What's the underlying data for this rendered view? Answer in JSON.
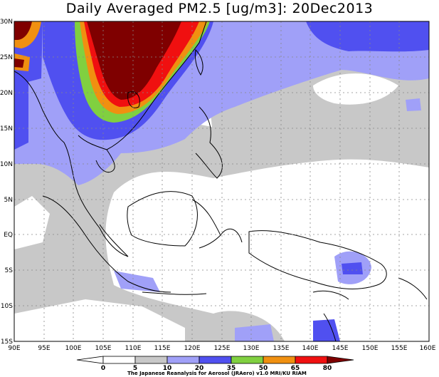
{
  "title": "Daily Averaged PM2.5 [ug/m3]: 20Dec2013",
  "lat_labels": [
    "30N",
    "25N",
    "20N",
    "15N",
    "10N",
    "5N",
    "EQ",
    "5S",
    "10S",
    "15S"
  ],
  "lon_labels": [
    "90E",
    "95E",
    "100E",
    "105E",
    "110E",
    "115E",
    "120E",
    "125E",
    "130E",
    "135E",
    "140E",
    "145E",
    "150E",
    "155E",
    "160E"
  ],
  "legend": {
    "ticks": [
      "0",
      "5",
      "10",
      "20",
      "35",
      "50",
      "65",
      "80"
    ],
    "colors": [
      "#ffffff",
      "#c8c8c8",
      "#a0a0f8",
      "#5050f0",
      "#80d040",
      "#f09010",
      "#f01010",
      "#7f0000"
    ]
  },
  "credit": "The Japanese Reanalysis for Aerosol (JRAero) v1.0 MRI/KU RIAM"
}
